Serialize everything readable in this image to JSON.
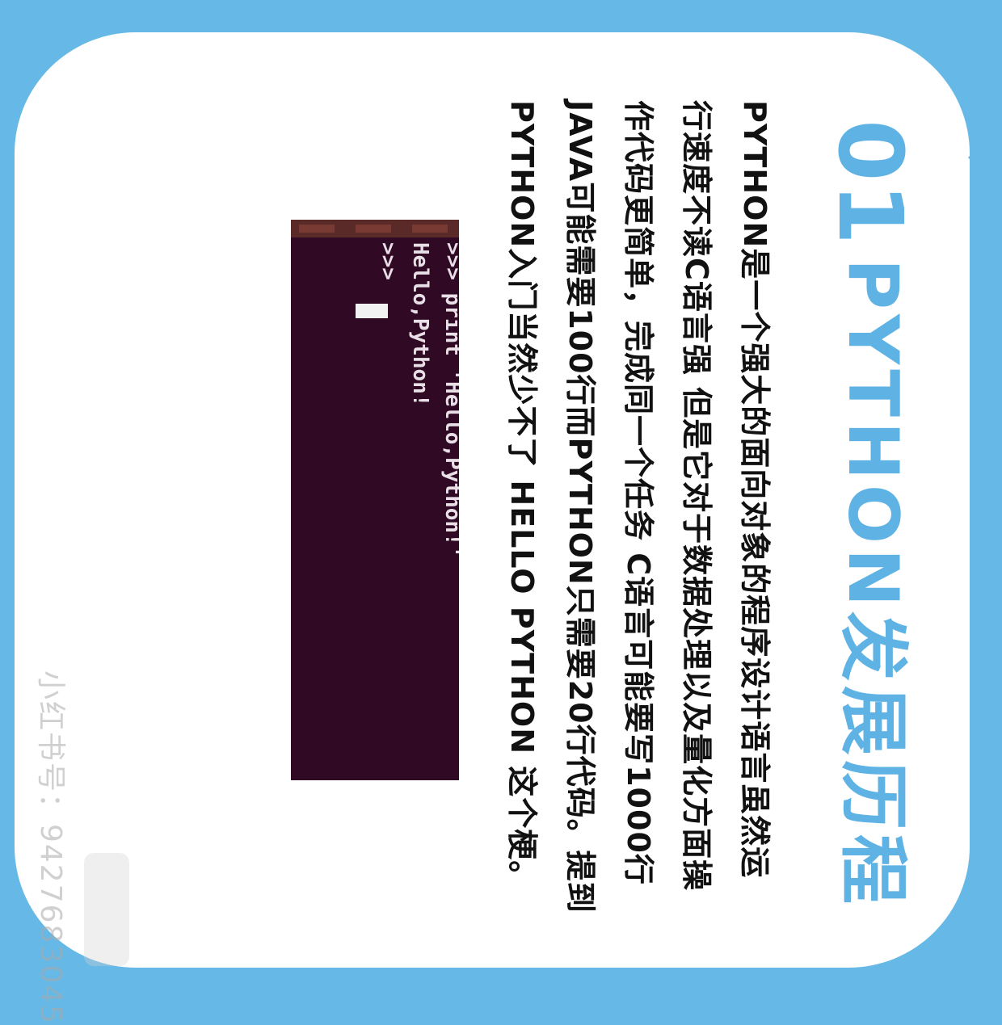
{
  "title": {
    "number": "01",
    "text": "PYTHON发展历程"
  },
  "paragraph_lines": [
    "PYTHON是一个强大的面向对象的程序设计语言虽然运",
    "行速度不读C语言强 但是它对于数据处理以及量化方面操",
    "作代码更简单，完成同一个任务 C语言可能要写1000行",
    "JAVA可能需要100行而PYTHON只需要20行代码。提到",
    "PYTHON入门当然少不了 HELLO PYTHON 这个梗。"
  ],
  "terminal": {
    "lines": [
      ">>> print 'Hello,Python!'",
      "Hello,Python!",
      ">>> "
    ]
  },
  "watermark": {
    "text": "小红书号：9427683045"
  },
  "colors": {
    "background": "#66b9e6",
    "card": "#ffffff",
    "title": "#5fb3e4",
    "terminal_bg": "#300a24",
    "text": "#111111"
  }
}
